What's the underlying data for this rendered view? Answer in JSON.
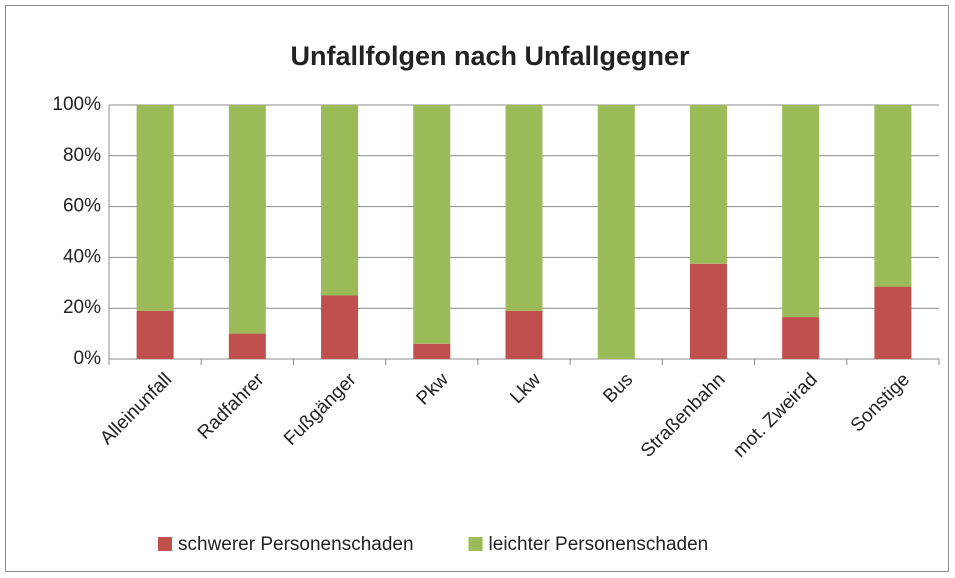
{
  "chart_data": {
    "type": "stacked_bar",
    "title": "Unfallfolgen nach Unfallgegner",
    "categories": [
      "Alleinunfall",
      "Radfahrer",
      "Fußgänger",
      "Pkw",
      "Lkw",
      "Bus",
      "Straßenbahn",
      "mot. Zweirad",
      "Sonstige"
    ],
    "series": [
      {
        "name": "schwerer Personenschaden",
        "color": "#c0504d",
        "values": [
          19,
          10,
          25,
          6,
          19,
          0,
          37.5,
          16.5,
          28.5
        ]
      },
      {
        "name": "leichter Personenschaden",
        "color": "#9bbb59",
        "values": [
          81,
          90,
          75,
          94,
          81,
          100,
          62.5,
          83.5,
          71.5
        ]
      }
    ],
    "ylim": [
      0,
      100
    ],
    "yticks": [
      {
        "value": 0,
        "label": "0%"
      },
      {
        "value": 20,
        "label": "20%"
      },
      {
        "value": 40,
        "label": "40%"
      },
      {
        "value": 60,
        "label": "60%"
      },
      {
        "value": 80,
        "label": "80%"
      },
      {
        "value": 100,
        "label": "100%"
      }
    ],
    "grid": true,
    "legend": "bottom"
  }
}
